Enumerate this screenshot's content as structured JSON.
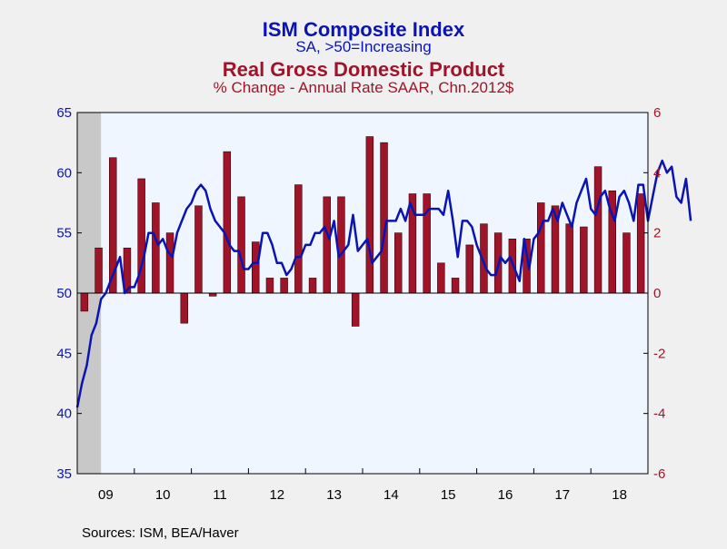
{
  "colors": {
    "ism": "#0a14b4",
    "gdp_fill": "#a0142a",
    "gdp_stroke": "#3a0000",
    "plot_bg": "#f0f6ff",
    "page_bg": "#f0f0f0",
    "recession": "#c8c8c8"
  },
  "chart_data": {
    "type": "bar",
    "title": "ISM Composite Index",
    "subtitle": "SA, >50=Increasing",
    "title2": "Real Gross Domestic Product",
    "subtitle2": "% Change - Annual Rate     SAAR, Chn.2012$",
    "source": "Sources:  ISM, BEA/Haver",
    "y_left": {
      "lim": [
        35,
        65
      ],
      "ticks": [
        "35",
        "40",
        "45",
        "50",
        "55",
        "60",
        "65"
      ]
    },
    "y_right": {
      "lim": [
        -6,
        6
      ],
      "ticks": [
        "-6",
        "-4",
        "-2",
        "0",
        "2",
        "4",
        "6"
      ]
    },
    "x_labels": [
      "09",
      "10",
      "11",
      "12",
      "13",
      "14",
      "15",
      "16",
      "17",
      "18"
    ],
    "recession_shade": {
      "from": "2009-01",
      "to": "2009-06"
    },
    "series": [
      {
        "name": "ISM Composite Index",
        "axis": "left",
        "chart": "line",
        "start": "2009-01",
        "frequency": "monthly",
        "values": [
          40.5,
          42.5,
          44,
          46.5,
          47.5,
          49.5,
          50,
          51,
          52,
          53,
          50,
          50.5,
          50.5,
          51.5,
          53,
          55,
          55,
          54,
          54.5,
          53.5,
          53,
          55,
          56,
          57,
          57.5,
          58.5,
          59,
          58.5,
          57,
          56,
          55.5,
          55,
          54,
          53.5,
          53.5,
          52,
          52,
          52.5,
          52.5,
          55,
          55,
          54,
          52.5,
          52.5,
          51.5,
          52,
          53,
          53,
          54,
          54,
          55,
          55,
          55.5,
          54.5,
          56,
          53,
          53.5,
          54,
          56.5,
          53.5,
          54,
          54.5,
          52.5,
          53,
          53.5,
          56,
          56,
          56,
          57,
          56,
          57.5,
          56.5,
          56.5,
          56.5,
          57,
          57,
          57,
          56.5,
          58.5,
          56,
          53,
          56,
          56,
          55.5,
          54,
          53,
          52,
          51.5,
          51.5,
          53,
          52.5,
          53,
          52,
          51,
          54.5,
          52,
          54.5,
          55,
          56,
          56,
          57,
          56,
          57.5,
          56.5,
          55.5,
          57.5,
          58.5,
          59.5,
          57,
          56.5,
          58,
          58.5,
          57,
          56,
          58,
          58.5,
          57.5,
          56,
          59,
          59,
          56,
          58,
          60,
          61,
          60,
          60.5,
          58,
          57.5,
          59.5,
          56
        ]
      },
      {
        "name": "Real Gross Domestic Product",
        "axis": "right",
        "chart": "bar",
        "start": "2009-Q1",
        "frequency": "quarterly",
        "values": [
          -0.6,
          1.5,
          4.5,
          1.5,
          3.8,
          3.0,
          2.0,
          -1.0,
          2.9,
          -0.1,
          4.7,
          3.2,
          1.7,
          0.5,
          0.5,
          3.6,
          0.5,
          3.2,
          3.2,
          -1.1,
          5.2,
          5.0,
          2.0,
          3.3,
          3.3,
          1.0,
          0.5,
          1.6,
          2.3,
          2.0,
          1.8,
          1.8,
          3.0,
          2.9,
          2.3,
          2.2,
          4.2,
          3.4,
          2.0,
          3.3
        ]
      }
    ]
  }
}
